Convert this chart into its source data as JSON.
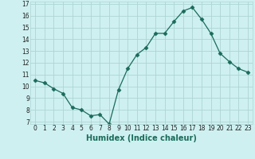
{
  "x": [
    0,
    1,
    2,
    3,
    4,
    5,
    6,
    7,
    8,
    9,
    10,
    11,
    12,
    13,
    14,
    15,
    16,
    17,
    18,
    19,
    20,
    21,
    22,
    23
  ],
  "y": [
    10.5,
    10.3,
    9.8,
    9.4,
    8.2,
    8.0,
    7.5,
    7.6,
    6.8,
    9.7,
    11.5,
    12.7,
    13.3,
    14.5,
    14.5,
    15.5,
    16.4,
    16.7,
    15.7,
    14.5,
    12.8,
    12.1,
    11.5,
    11.2
  ],
  "xlabel": "Humidex (Indice chaleur)",
  "xlim": [
    -0.5,
    23.5
  ],
  "ylim": [
    6.8,
    17.2
  ],
  "yticks": [
    7,
    8,
    9,
    10,
    11,
    12,
    13,
    14,
    15,
    16,
    17
  ],
  "xticks": [
    0,
    1,
    2,
    3,
    4,
    5,
    6,
    7,
    8,
    9,
    10,
    11,
    12,
    13,
    14,
    15,
    16,
    17,
    18,
    19,
    20,
    21,
    22,
    23
  ],
  "xtick_labels": [
    "0",
    "1",
    "2",
    "3",
    "4",
    "5",
    "6",
    "7",
    "8",
    "9",
    "10",
    "11",
    "12",
    "13",
    "14",
    "15",
    "16",
    "17",
    "18",
    "19",
    "20",
    "21",
    "22",
    "23"
  ],
  "line_color": "#1a6b5a",
  "marker": "D",
  "marker_size": 2.5,
  "bg_color": "#cef0f0",
  "grid_color": "#aed4d4"
}
